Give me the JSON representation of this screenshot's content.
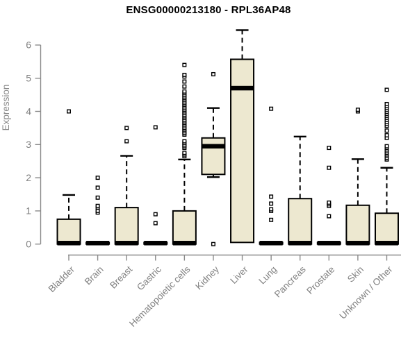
{
  "chart_data": {
    "type": "boxplot",
    "title": "ENSG00000213180 - RPL36AP48",
    "ylabel": "Expression",
    "xlabel": "",
    "ylim": [
      0,
      6
    ],
    "yticks": [
      0,
      1,
      2,
      3,
      4,
      5,
      6
    ],
    "grid": false,
    "legend": "none",
    "categories": [
      "Bladder",
      "Brain",
      "Breast",
      "Gastric",
      "Hematopoietic cells",
      "Kidney",
      "Liver",
      "Lung",
      "Pancreas",
      "Prostate",
      "Skin",
      "Unknown / Other"
    ],
    "series": [
      {
        "category": "Bladder",
        "q1": 0,
        "median": 0.03,
        "q3": 0.75,
        "whisker_low": 0,
        "whisker_high": 1.48,
        "outliers": [
          4.0
        ]
      },
      {
        "category": "Brain",
        "q1": 0,
        "median": 0.03,
        "q3": 0.05,
        "whisker_low": 0,
        "whisker_high": 0.05,
        "outliers": [
          0.95,
          1.0,
          1.1,
          1.15,
          1.4,
          1.7,
          2.0
        ]
      },
      {
        "category": "Breast",
        "q1": 0,
        "median": 0.03,
        "q3": 1.1,
        "whisker_low": 0,
        "whisker_high": 2.66,
        "outliers": [
          3.1,
          3.5
        ]
      },
      {
        "category": "Gastric",
        "q1": 0,
        "median": 0.03,
        "q3": 0.05,
        "whisker_low": 0,
        "whisker_high": 0.05,
        "outliers": [
          0.63,
          0.9,
          3.52
        ]
      },
      {
        "category": "Hematopoietic cells",
        "q1": 0,
        "median": 0.03,
        "q3": 1.0,
        "whisker_low": 0,
        "whisker_high": 2.55,
        "outliers": [
          2.65,
          2.7,
          2.75,
          2.9,
          2.95,
          3.0,
          3.05,
          3.1,
          3.3,
          3.35,
          3.4,
          3.45,
          3.5,
          3.55,
          3.6,
          3.65,
          3.7,
          3.75,
          3.8,
          3.85,
          3.9,
          3.95,
          4.0,
          4.05,
          4.1,
          4.15,
          4.2,
          4.25,
          4.3,
          4.35,
          4.4,
          4.45,
          4.5,
          4.55,
          4.6,
          4.75,
          4.9,
          5.05,
          5.1,
          5.4
        ]
      },
      {
        "category": "Kidney",
        "q1": 2.1,
        "median": 2.95,
        "q3": 3.2,
        "whisker_low": 2.02,
        "whisker_high": 4.1,
        "outliers": [
          0.0,
          5.12
        ]
      },
      {
        "category": "Liver",
        "q1": 0.05,
        "median": 4.7,
        "q3": 5.57,
        "whisker_low": 0.05,
        "whisker_high": 6.45,
        "outliers": []
      },
      {
        "category": "Lung",
        "q1": 0,
        "median": 0.03,
        "q3": 0.05,
        "whisker_low": 0,
        "whisker_high": 0.05,
        "outliers": [
          0.73,
          1.0,
          1.05,
          1.22,
          1.43,
          4.08
        ]
      },
      {
        "category": "Pancreas",
        "q1": 0,
        "median": 0.03,
        "q3": 1.37,
        "whisker_low": 0,
        "whisker_high": 3.24,
        "outliers": []
      },
      {
        "category": "Prostate",
        "q1": 0,
        "median": 0.03,
        "q3": 0.05,
        "whisker_low": 0,
        "whisker_high": 0.05,
        "outliers": [
          0.84,
          1.15,
          1.2,
          1.25,
          2.3,
          2.9
        ]
      },
      {
        "category": "Skin",
        "q1": 0,
        "median": 0.03,
        "q3": 1.17,
        "whisker_low": 0,
        "whisker_high": 2.56,
        "outliers": [
          4.0,
          4.05
        ]
      },
      {
        "category": "Unknown / Other",
        "q1": 0,
        "median": 0.03,
        "q3": 0.93,
        "whisker_low": 0,
        "whisker_high": 2.3,
        "outliers": [
          2.55,
          2.6,
          2.65,
          2.7,
          2.75,
          2.8,
          2.85,
          2.9,
          2.95,
          3.2,
          3.28,
          3.42,
          3.56,
          3.62,
          3.68,
          3.74,
          3.8,
          3.86,
          3.92,
          3.98,
          4.04,
          4.1,
          4.16,
          4.22,
          4.65
        ]
      }
    ],
    "colors": {
      "box_fill": "#EDE8D0",
      "box_stroke": "#000000",
      "median": "#000000",
      "whisker": "#000000",
      "outlier_stroke": "#000000",
      "outlier_fill": "#ffffff",
      "axis": "#8a8a8a",
      "tick_label": "#808080",
      "title": "#000000"
    }
  }
}
